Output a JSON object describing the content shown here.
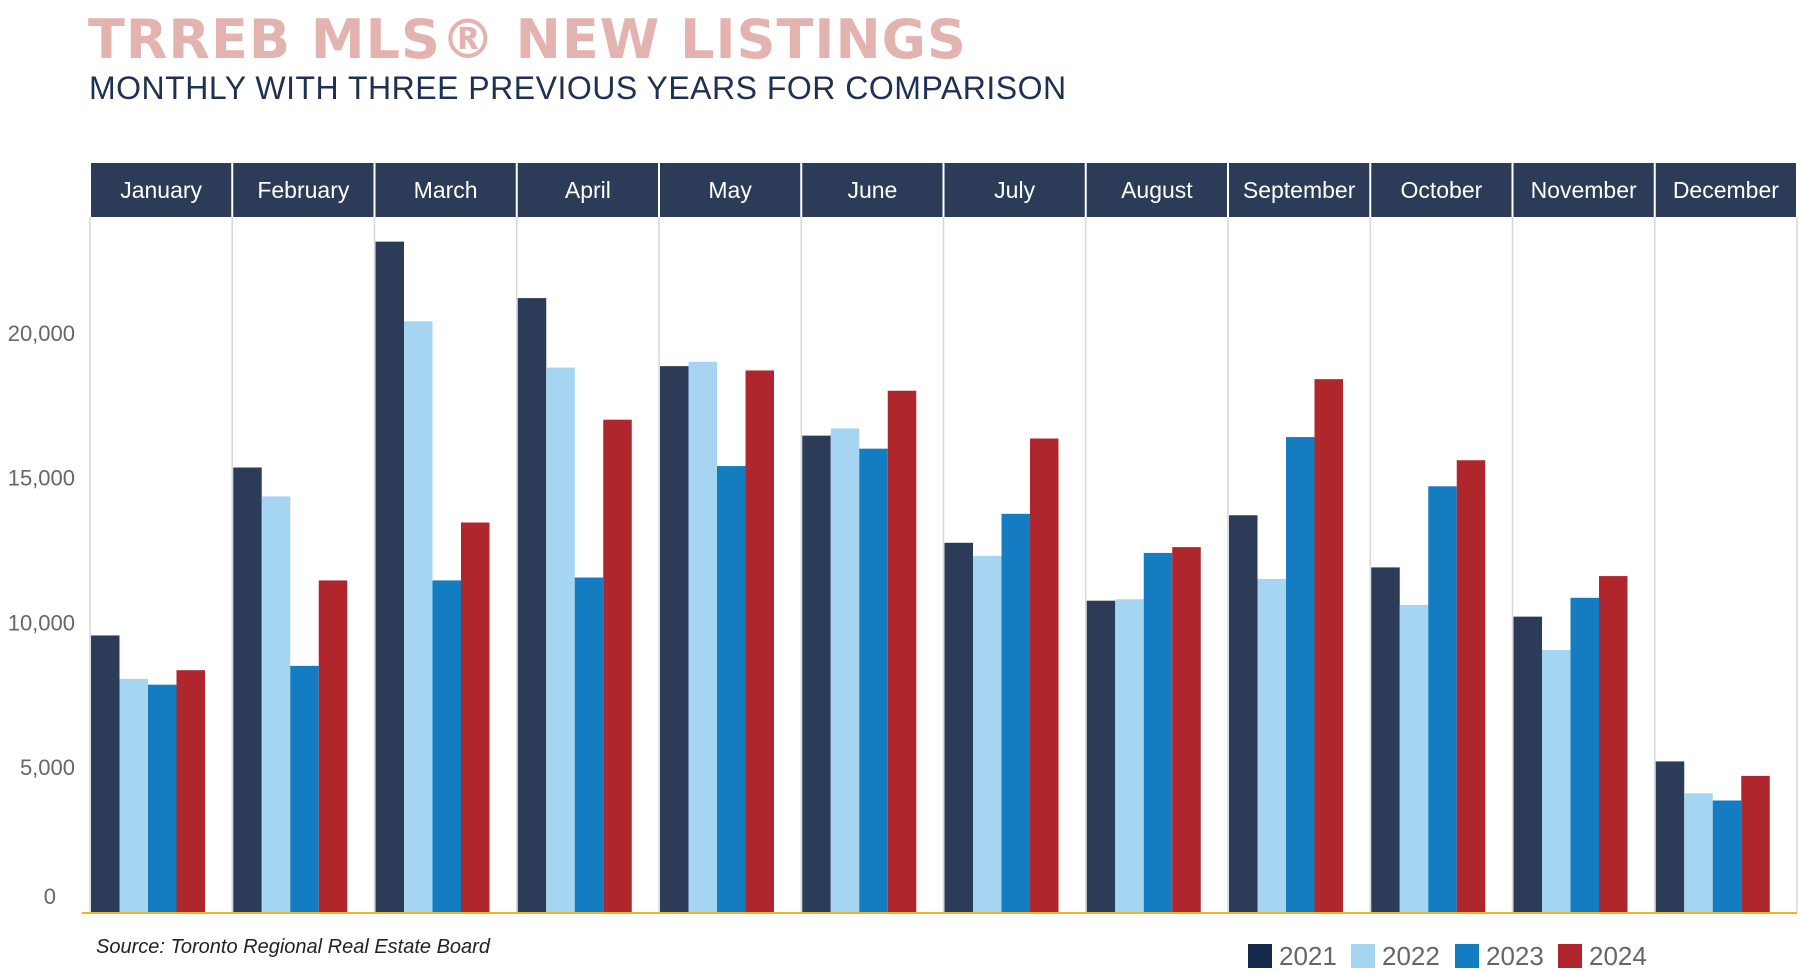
{
  "title": "TRREB MLS® NEW LISTINGS",
  "subtitle": "MONTHLY WITH THREE PREVIOUS YEARS FOR COMPARISON",
  "source": "Source: Toronto Regional Real Estate Board",
  "colors": {
    "title": "#E3B3AF",
    "subtitle": "#1E3150",
    "header_bg": "#2C3B58",
    "header_text": "#FFFFFF",
    "divider": "#D5D7DB",
    "axis_text": "#666666",
    "baseline": "#F0B429"
  },
  "chart_data": {
    "type": "bar",
    "categories": [
      "January",
      "February",
      "March",
      "April",
      "May",
      "June",
      "July",
      "August",
      "September",
      "October",
      "November",
      "December"
    ],
    "series": [
      {
        "name": "2021",
        "color": "#2C3B58",
        "legend_color": "#14284A",
        "values": [
          9550,
          15350,
          23150,
          21200,
          18850,
          16450,
          12750,
          10750,
          13700,
          11900,
          10200,
          5200
        ]
      },
      {
        "name": "2022",
        "color": "#A6D5F2",
        "legend_color": "#A6D5F2",
        "values": [
          8050,
          14350,
          20400,
          18800,
          19000,
          16700,
          12300,
          10800,
          11500,
          10600,
          9050,
          4100
        ]
      },
      {
        "name": "2023",
        "color": "#147CC1",
        "legend_color": "#147CC1",
        "values": [
          7850,
          8500,
          11450,
          11550,
          15400,
          16000,
          13750,
          12400,
          16400,
          14700,
          10850,
          3850
        ]
      },
      {
        "name": "2024",
        "color": "#AF272C",
        "legend_color": "#AF272C",
        "values": [
          8350,
          11450,
          13450,
          17000,
          18700,
          18000,
          16350,
          12600,
          18400,
          15600,
          11600,
          4700
        ]
      }
    ],
    "yticks": [
      {
        "value": 0,
        "label": "0"
      },
      {
        "value": 5000,
        "label": "5,000"
      },
      {
        "value": 10000,
        "label": "10,000"
      },
      {
        "value": 15000,
        "label": "15,000"
      },
      {
        "value": 20000,
        "label": "20,000"
      }
    ],
    "ylim": [
      0,
      24000
    ],
    "grid": false,
    "legend": "bottom-right"
  }
}
